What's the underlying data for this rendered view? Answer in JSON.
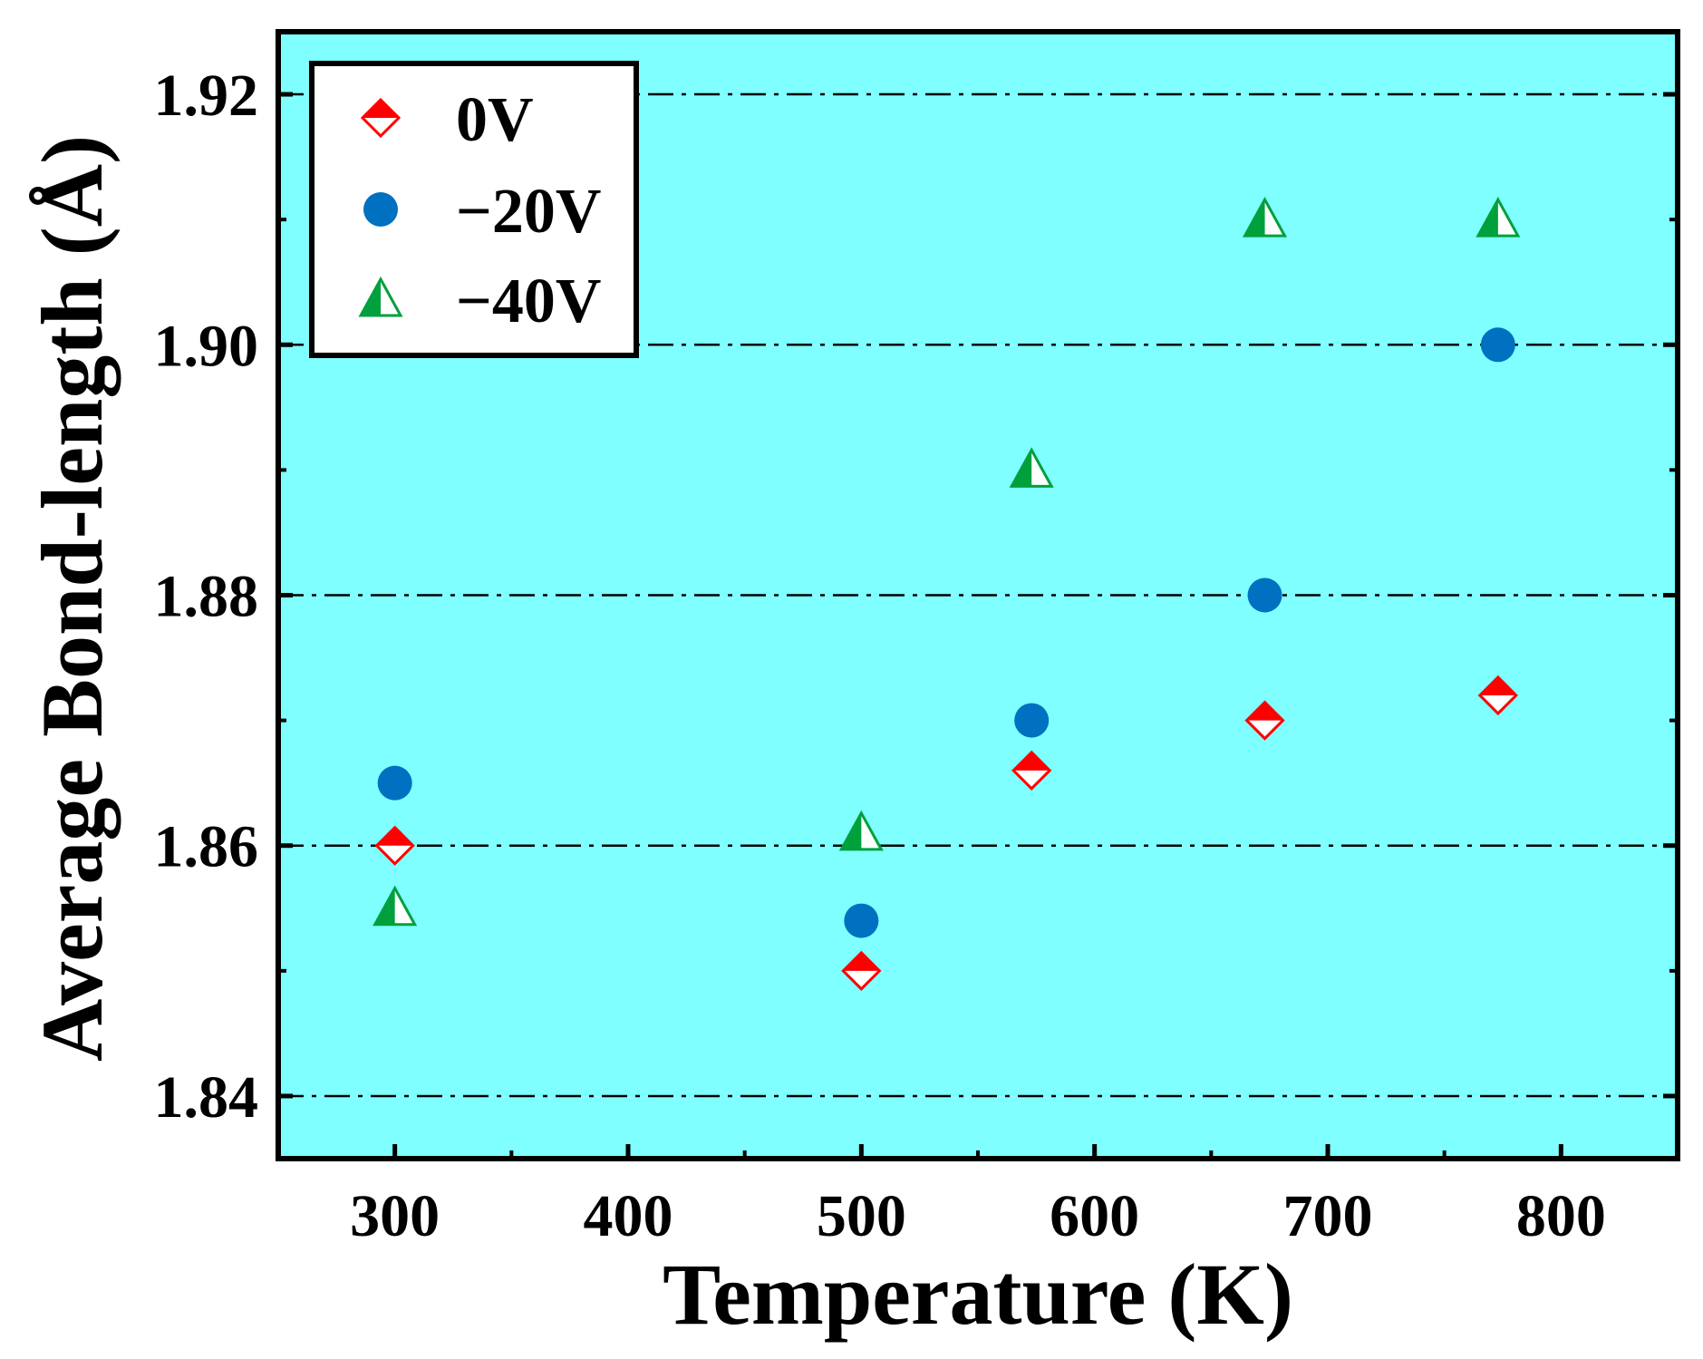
{
  "chart_data": {
    "type": "scatter",
    "title": "",
    "xlabel": "Temperature (K)",
    "ylabel": "Average Bond-length (Å)",
    "xlim": [
      250,
      850
    ],
    "ylim": [
      1.835,
      1.925
    ],
    "x_ticks": [
      300,
      400,
      500,
      600,
      700,
      800
    ],
    "x_tick_labels": [
      "300",
      "400",
      "500",
      "600",
      "700",
      "800"
    ],
    "y_ticks": [
      1.84,
      1.86,
      1.88,
      1.9,
      1.92
    ],
    "y_tick_labels": [
      "1.84",
      "1.86",
      "1.88",
      "1.90",
      "1.92"
    ],
    "grid": "horizontal dash-dot at major y ticks",
    "legend_position": "top-left",
    "series": [
      {
        "name": "0V",
        "marker": "diamond",
        "color": "#ff0000",
        "x": [
          300,
          500,
          573,
          673,
          773
        ],
        "y": [
          1.86,
          1.85,
          1.866,
          1.87,
          1.872
        ]
      },
      {
        "name": "−20V",
        "marker": "circle",
        "color": "#0070c0",
        "x": [
          300,
          500,
          573,
          673,
          773
        ],
        "y": [
          1.865,
          1.854,
          1.87,
          1.88,
          1.9
        ]
      },
      {
        "name": "−40V",
        "marker": "triangle",
        "color": "#00a03c",
        "x": [
          300,
          500,
          573,
          673,
          773
        ],
        "y": [
          1.855,
          1.861,
          1.89,
          1.91,
          1.91
        ]
      }
    ]
  },
  "colors": {
    "plot_background": "#7fffff",
    "grid_line": "#000000",
    "axis": "#000000"
  }
}
